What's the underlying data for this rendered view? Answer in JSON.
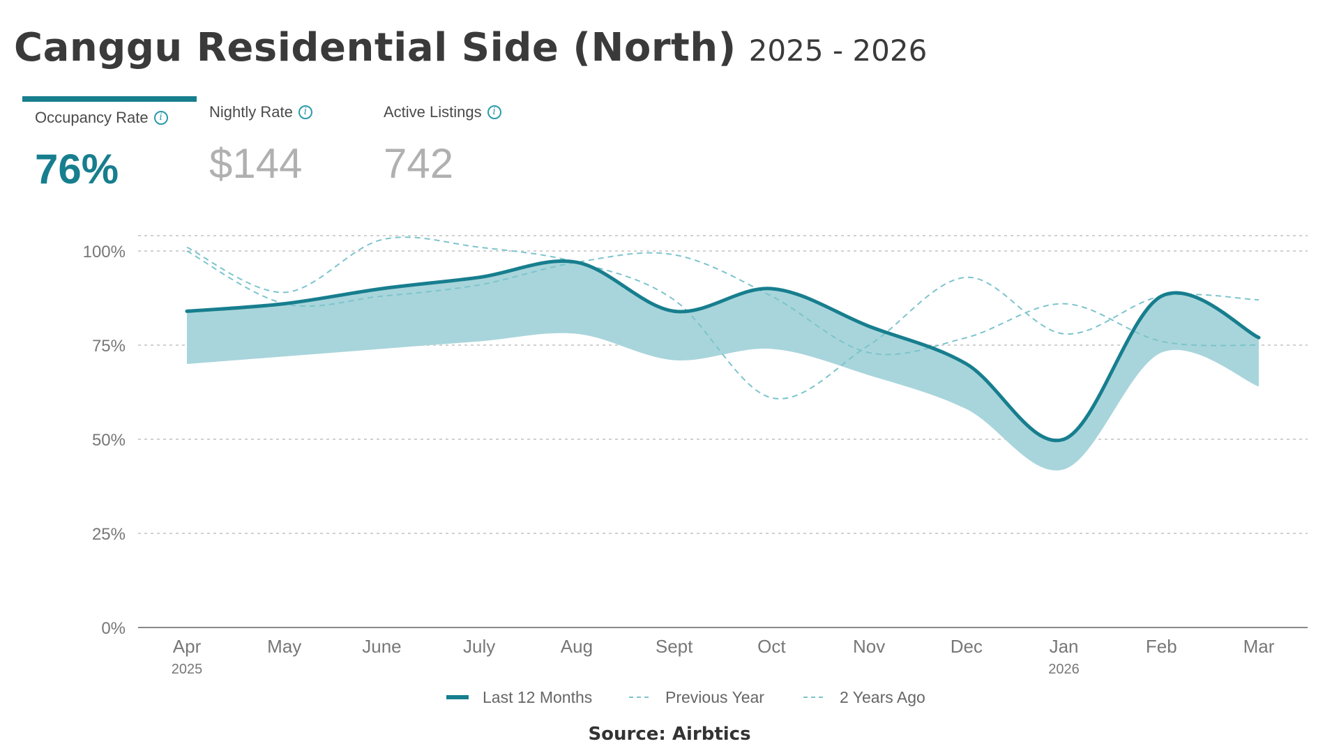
{
  "header": {
    "title": "Canggu Residential Side (North)",
    "subtitle": "2025 - 2026"
  },
  "tabs": [
    {
      "label": "Occupancy Rate",
      "value": "76%",
      "active": true,
      "icon": "info-icon"
    },
    {
      "label": "Nightly Rate",
      "value": "$144",
      "active": false,
      "icon": "info-icon"
    },
    {
      "label": "Active Listings",
      "value": "742",
      "active": false,
      "icon": "info-icon"
    }
  ],
  "colors": {
    "accent": "#177e8e",
    "band": "#a8d5db",
    "secondary": "#7cc4cc",
    "grid": "#d0d0d0",
    "axis": "#888888"
  },
  "chart_data": {
    "type": "line",
    "categories": [
      "Apr",
      "May",
      "June",
      "July",
      "Aug",
      "Sept",
      "Oct",
      "Nov",
      "Dec",
      "Jan",
      "Feb",
      "Mar"
    ],
    "year_labels": [
      {
        "index": 0,
        "label": "2025"
      },
      {
        "index": 9,
        "label": "2026"
      }
    ],
    "y_ticks": [
      "0%",
      "25%",
      "50%",
      "75%",
      "100%"
    ],
    "ylim": [
      0,
      100
    ],
    "grid": true,
    "legend_position": "bottom",
    "series": [
      {
        "name": "Last 12 Months",
        "style": "solid",
        "values": [
          84,
          86,
          90,
          93,
          97,
          84,
          90,
          80,
          70,
          50,
          88,
          77
        ]
      },
      {
        "name": "Previous Year",
        "style": "dashed",
        "values": [
          100,
          86,
          88,
          91,
          97,
          99,
          88,
          73,
          77,
          86,
          76,
          75
        ]
      },
      {
        "name": "2 Years Ago",
        "style": "dashed",
        "values": [
          101,
          89,
          103,
          101,
          97,
          87,
          61,
          75,
          93,
          78,
          88,
          87
        ]
      }
    ],
    "band": {
      "upper": [
        84,
        86,
        90,
        93,
        97,
        84,
        90,
        80,
        70,
        50,
        88,
        77
      ],
      "lower": [
        70,
        72,
        74,
        76,
        78,
        71,
        74,
        67,
        58,
        42,
        73,
        64
      ]
    }
  },
  "source": "Source: Airbtics"
}
